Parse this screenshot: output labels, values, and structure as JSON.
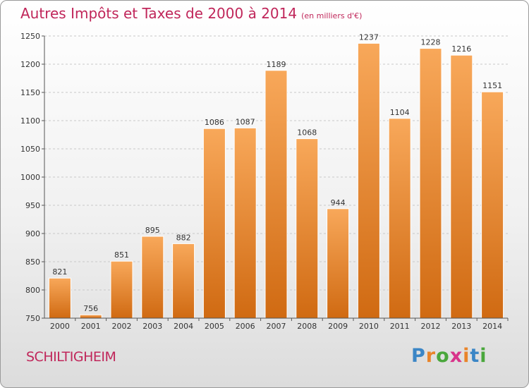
{
  "title": "Autres Impôts et Taxes de 2000 à 2014",
  "subtitle": "(en milliers d'€)",
  "city": "SCHILTIGHEIM",
  "logo": [
    "P",
    "r",
    "o",
    "x",
    "i",
    "t",
    "i"
  ],
  "colors": {
    "title": "#c0265a",
    "bar": "#f0902e",
    "bar_light": "#f8a85a",
    "bar_dark": "#d06a12"
  },
  "chart_data": {
    "type": "bar",
    "title": "Autres Impôts et Taxes de 2000 à 2014",
    "subtitle": "(en milliers d'€)",
    "categories": [
      "2000",
      "2001",
      "2002",
      "2003",
      "2004",
      "2005",
      "2006",
      "2007",
      "2008",
      "2009",
      "2010",
      "2011",
      "2012",
      "2013",
      "2014"
    ],
    "values": [
      821,
      756,
      851,
      895,
      882,
      1086,
      1087,
      1189,
      1068,
      944,
      1237,
      1104,
      1228,
      1216,
      1151
    ],
    "ylim": [
      750,
      1250
    ],
    "yticks": [
      750,
      800,
      850,
      900,
      950,
      1000,
      1050,
      1100,
      1150,
      1200,
      1250
    ],
    "grid": true,
    "xlabel": "",
    "ylabel": ""
  }
}
